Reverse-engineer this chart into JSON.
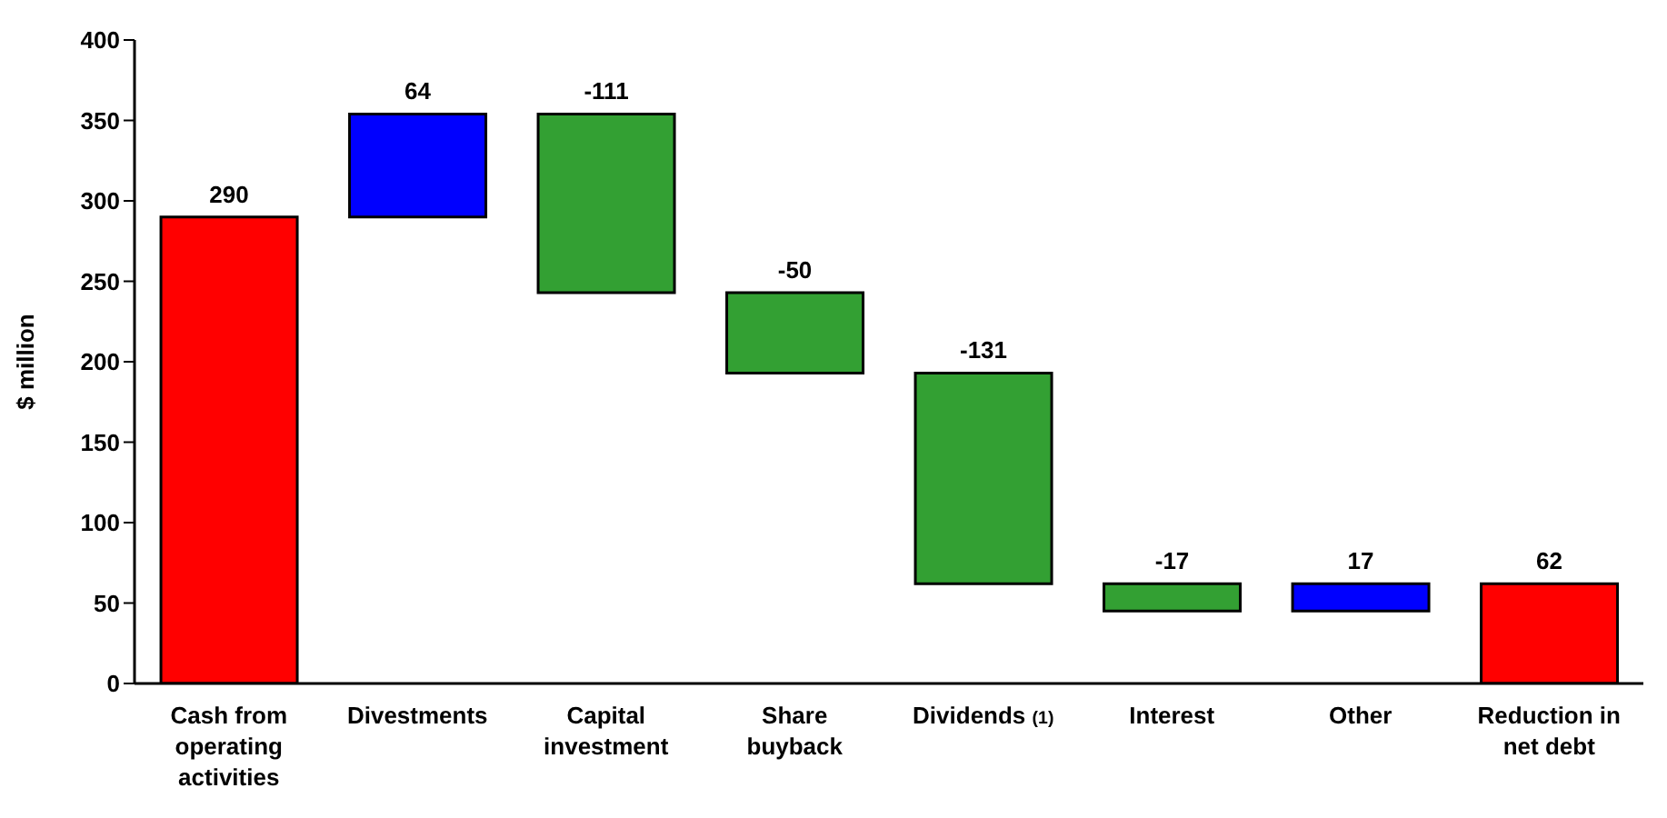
{
  "chart_data": {
    "type": "bar",
    "ylabel": "$ million",
    "categories": [
      "Cash from operating activities",
      "Divestments",
      "Capital investment",
      "Share buyback",
      "Dividends $_{(1)}$",
      "Interest",
      "Other",
      "Reduction in net debt"
    ],
    "values": [
      290,
      64,
      -111,
      -50,
      -131,
      -17,
      17,
      62
    ],
    "base": [
      0,
      290,
      354,
      243,
      193,
      62,
      45,
      0
    ],
    "colors": [
      "#ff0000",
      "#0000ff",
      "#33a033",
      "#33a033",
      "#33a033",
      "#33a033",
      "#0000ff",
      "#ff0000"
    ],
    "ylim": [
      0,
      400
    ],
    "yticks": [
      0,
      50,
      100,
      150,
      200,
      250,
      300,
      350,
      400
    ],
    "data_labels": true
  }
}
